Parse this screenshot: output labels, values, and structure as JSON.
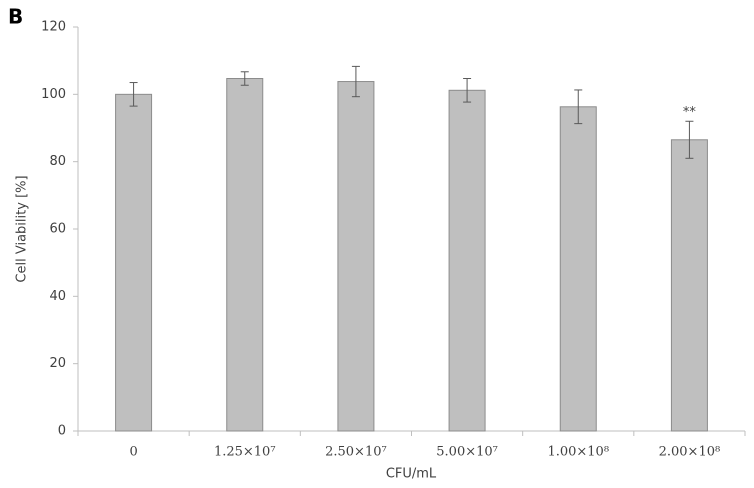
{
  "chart_data": {
    "type": "bar",
    "panel_label": "B",
    "y_label": "Cell Viability [%]",
    "x_label": "CFU/mL",
    "categories": [
      "0",
      "1.25×10⁷",
      "2.50×10⁷",
      "5.00×10⁷",
      "1.00×10⁸",
      "2.00×10⁸"
    ],
    "values": [
      100,
      104.7,
      103.8,
      101.2,
      96.3,
      86.5
    ],
    "errors": [
      3.5,
      2,
      4.5,
      3.5,
      5,
      5.5
    ],
    "significance": [
      null,
      null,
      null,
      null,
      null,
      "**"
    ],
    "color": "#bfbfbf",
    "edge_color": "#8c8c8c",
    "ylim": [
      0,
      120
    ],
    "yticks": [
      0,
      20,
      40,
      60,
      80,
      100,
      120
    ],
    "grid": false
  }
}
